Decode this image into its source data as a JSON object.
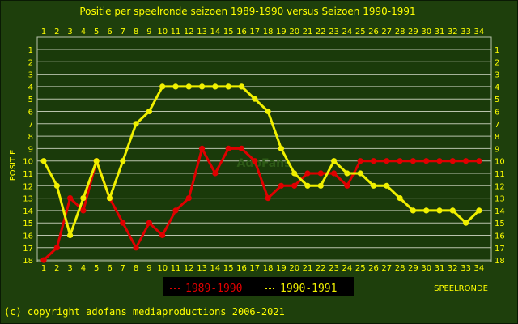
{
  "colors": {
    "background": "#1e3f0c",
    "plot_background": "#1a3a0a",
    "grid": "#b9c4ad",
    "text": "#ffff00",
    "series_1989": "#e00000",
    "series_1990": "#f0f000",
    "legend_box": "#000000"
  },
  "chart_data": {
    "type": "line",
    "title": "Positie per speelronde seizoen 1989-1990 versus Seizoen 1990-1991",
    "xlabel": "SPEELRONDE",
    "ylabel": "POSITIE",
    "x": [
      1,
      2,
      3,
      4,
      5,
      6,
      7,
      8,
      9,
      10,
      11,
      12,
      13,
      14,
      15,
      16,
      17,
      18,
      19,
      20,
      21,
      22,
      23,
      24,
      25,
      26,
      27,
      28,
      29,
      30,
      31,
      32,
      33,
      34
    ],
    "xlim": [
      1,
      34
    ],
    "ylim": [
      1,
      18
    ],
    "y_inverted": true,
    "yticks": [
      1,
      2,
      3,
      4,
      5,
      6,
      7,
      8,
      9,
      10,
      11,
      12,
      13,
      14,
      15,
      16,
      17,
      18
    ],
    "grid": true,
    "legend_position": "bottom-center",
    "series": [
      {
        "name": "1989-1990",
        "color": "#e00000",
        "values": [
          18,
          17,
          13,
          14,
          10,
          13,
          15,
          17,
          15,
          16,
          14,
          13,
          9,
          11,
          9,
          9,
          10,
          13,
          12,
          12,
          11,
          11,
          11,
          12,
          10,
          10,
          10,
          10,
          10,
          10,
          10,
          10,
          10,
          10
        ]
      },
      {
        "name": "1990-1991",
        "color": "#f0f000",
        "values": [
          10,
          12,
          16,
          13,
          10,
          13,
          10,
          7,
          6,
          4,
          4,
          4,
          4,
          4,
          4,
          4,
          5,
          6,
          9,
          11,
          12,
          12,
          10,
          11,
          11,
          12,
          12,
          13,
          14,
          14,
          14,
          14,
          15,
          14
        ]
      }
    ]
  },
  "footer": {
    "copyright": "(c) copyright adofans mediaproductions 2006-2021"
  },
  "watermark": "AdoFans"
}
